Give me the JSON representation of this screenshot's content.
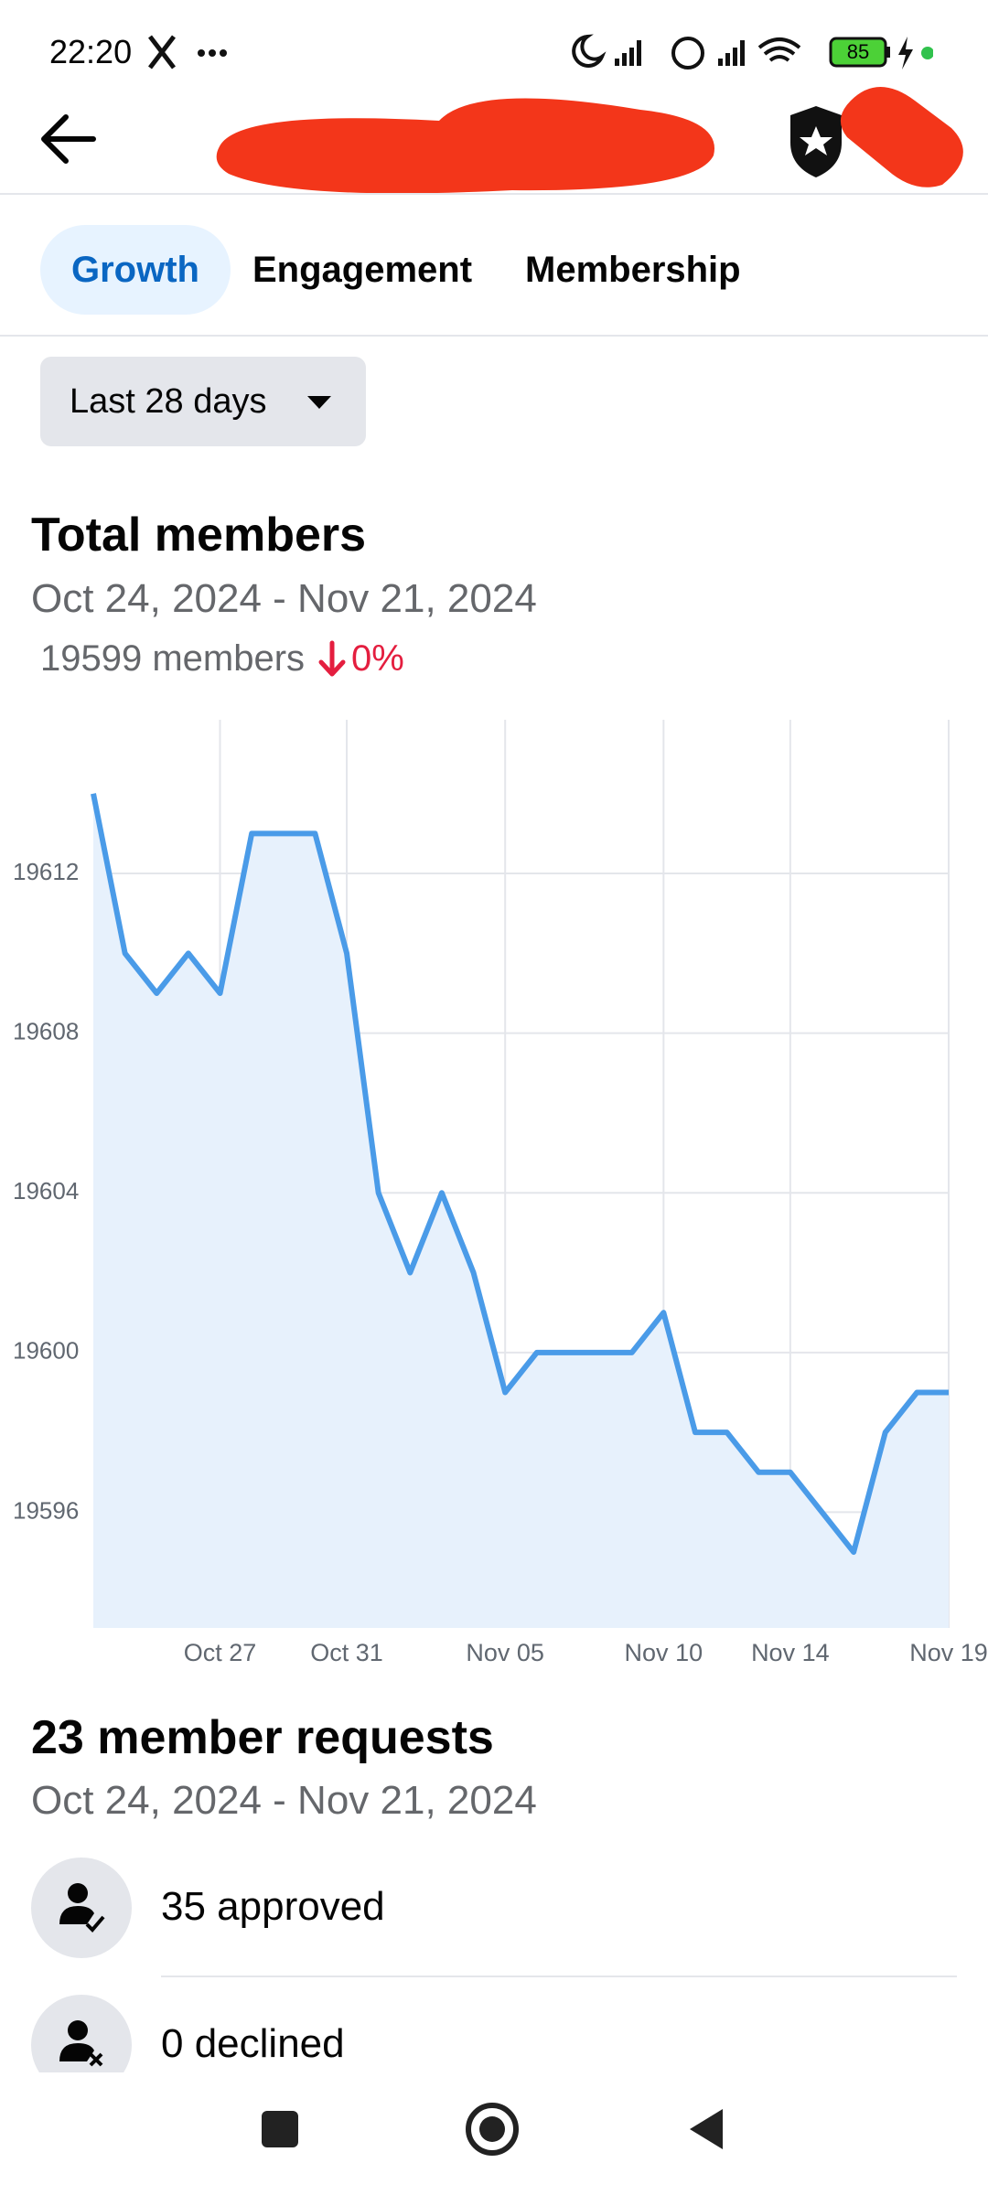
{
  "status_bar": {
    "time": "22:20",
    "battery": "85"
  },
  "tabs": [
    "Growth",
    "Engagement",
    "Membership"
  ],
  "filter": "Last 28 days",
  "total_members": {
    "title": "Total members",
    "date_range": "Oct 24, 2024 - Nov 21, 2024",
    "count": "19599 members",
    "change": "0%"
  },
  "chart_data": {
    "type": "line",
    "categories": [
      null,
      null,
      null,
      null,
      "Oct 27",
      null,
      null,
      null,
      "Oct 31",
      null,
      null,
      null,
      null,
      "Nov 05",
      null,
      null,
      null,
      null,
      "Nov 10",
      null,
      null,
      null,
      "Nov 14",
      null,
      null,
      null,
      null,
      "Nov 19"
    ],
    "series": [
      {
        "color": "#4a9be8",
        "fill": "#e7f1fc",
        "values": [
          19614,
          19610,
          19609,
          19610,
          19609,
          19613,
          19613,
          19613,
          19610,
          19604,
          19602,
          19604,
          19602,
          19599,
          19600,
          19600,
          19600,
          19600,
          19601,
          19598,
          19598,
          19597,
          19597,
          19596,
          19595,
          19598,
          19599,
          19599
        ]
      }
    ],
    "ylim": [
      19593.1,
      19615.85
    ],
    "yticks": [
      19596,
      19600,
      19604,
      19608,
      19612
    ],
    "grid": true
  },
  "requests": {
    "title": "23 member requests",
    "date_range": "Oct 24, 2024 - Nov 21, 2024",
    "items": [
      "35 approved",
      "0 declined"
    ]
  }
}
